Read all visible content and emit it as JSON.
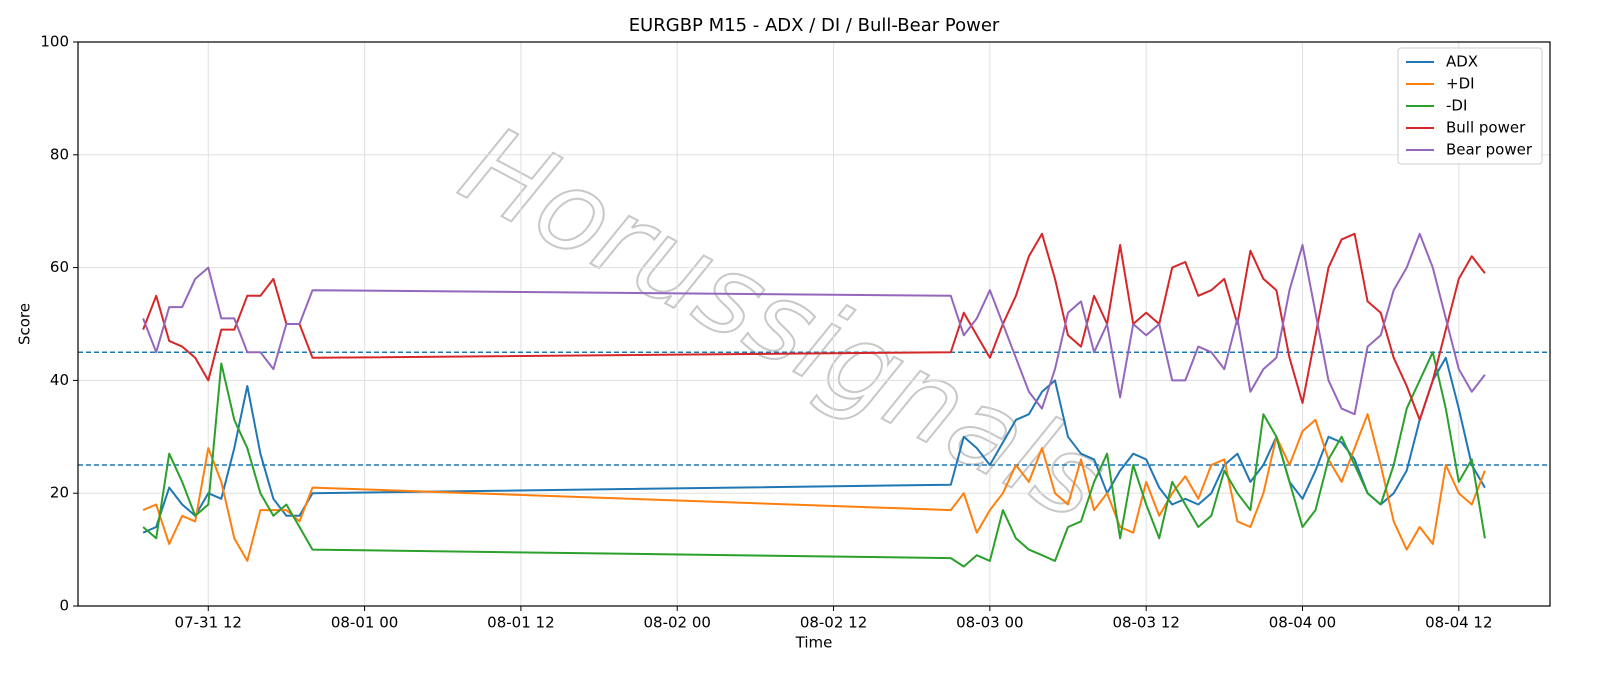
{
  "chart_data": {
    "type": "line",
    "title": "EURGBP M15 - ADX / DI / Bull-Bear Power",
    "x_label": "Time",
    "y_label": "Score",
    "watermark": "Horussignals",
    "x": [
      "07-31 07",
      "07-31 08",
      "07-31 09",
      "07-31 10",
      "07-31 11",
      "07-31 12",
      "07-31 13",
      "07-31 14",
      "07-31 15",
      "07-31 16",
      "07-31 17",
      "07-31 18",
      "07-31 19",
      "07-31 20",
      "08-02 21",
      "08-02 22",
      "08-02 23",
      "08-03 00",
      "08-03 01",
      "08-03 02",
      "08-03 03",
      "08-03 04",
      "08-03 05",
      "08-03 06",
      "08-03 07",
      "08-03 08",
      "08-03 09",
      "08-03 10",
      "08-03 11",
      "08-03 12",
      "08-03 13",
      "08-03 14",
      "08-03 15",
      "08-03 16",
      "08-03 17",
      "08-03 18",
      "08-03 19",
      "08-03 20",
      "08-03 21",
      "08-03 22",
      "08-03 23",
      "08-04 00",
      "08-04 01",
      "08-04 02",
      "08-04 03",
      "08-04 04",
      "08-04 05",
      "08-04 06",
      "08-04 07",
      "08-04 08",
      "08-04 09",
      "08-04 10",
      "08-04 11",
      "08-04 12",
      "08-04 13",
      "08-04 14"
    ],
    "series": [
      {
        "name": "ADX",
        "color": "#1f77b4",
        "values": [
          13,
          14,
          21,
          18,
          16,
          20,
          19,
          28,
          39,
          27,
          19,
          16,
          16,
          20,
          21.5,
          30,
          28,
          25,
          29,
          33,
          34,
          38,
          40,
          30,
          27,
          26,
          20,
          24,
          27,
          26,
          21,
          18,
          19,
          18,
          20,
          25,
          27,
          22,
          25,
          30,
          22,
          19,
          24,
          30,
          29,
          26,
          20,
          18,
          20,
          24,
          33,
          40,
          44,
          35,
          25,
          21
        ]
      },
      {
        "name": "+DI",
        "color": "#ff7f0e",
        "values": [
          17,
          18,
          11,
          16,
          15,
          28,
          22,
          12,
          8,
          17,
          17,
          17,
          15,
          21,
          17,
          20,
          13,
          17,
          20,
          25,
          22,
          28,
          20,
          18,
          26,
          17,
          20,
          14,
          13,
          22,
          16,
          20,
          23,
          19,
          25,
          26,
          15,
          14,
          20,
          30,
          25,
          31,
          33,
          26,
          22,
          28,
          34,
          25,
          15,
          10,
          14,
          11,
          25,
          20,
          18,
          24
        ]
      },
      {
        "name": "-DI",
        "color": "#2ca02c",
        "values": [
          14,
          12,
          27,
          22,
          16,
          18,
          43,
          33,
          28,
          20,
          16,
          18,
          14,
          10,
          8.5,
          7,
          9,
          8,
          17,
          12,
          10,
          9,
          8,
          14,
          15,
          22,
          27,
          12,
          25,
          18,
          12,
          22,
          18,
          14,
          16,
          24,
          20,
          17,
          34,
          30,
          22,
          14,
          17,
          26,
          30,
          25,
          20,
          18,
          25,
          35,
          40,
          45,
          35,
          22,
          26,
          12
        ]
      },
      {
        "name": "Bull power",
        "color": "#d62728",
        "values": [
          49,
          55,
          47,
          46,
          44,
          40,
          49,
          49,
          55,
          55,
          58,
          50,
          50,
          44,
          45,
          52,
          48,
          44,
          50,
          55,
          62,
          66,
          58,
          48,
          46,
          55,
          50,
          64,
          50,
          52,
          50,
          60,
          61,
          55,
          56,
          58,
          50,
          63,
          58,
          56,
          44,
          36,
          48,
          60,
          65,
          66,
          54,
          52,
          44,
          39,
          33,
          40,
          49,
          58,
          62,
          59
        ]
      },
      {
        "name": "Bear power",
        "color": "#9467bd",
        "values": [
          51,
          45,
          53,
          53,
          58,
          60,
          51,
          51,
          45,
          45,
          42,
          50,
          50,
          56,
          55,
          48,
          51,
          56,
          50,
          44,
          38,
          35,
          42,
          52,
          54,
          45,
          50,
          37,
          50,
          48,
          50,
          40,
          40,
          46,
          45,
          42,
          51,
          38,
          42,
          44,
          56,
          64,
          52,
          40,
          35,
          34,
          46,
          48,
          56,
          60,
          66,
          60,
          51,
          42,
          38,
          41
        ]
      }
    ],
    "hlines": [
      45,
      25
    ],
    "hline_color": "#1f77b4",
    "xlim": [
      "07-31 02",
      "08-04 19"
    ],
    "xticks": [
      "07-31 12",
      "08-01 00",
      "08-01 12",
      "08-02 00",
      "08-02 12",
      "08-03 00",
      "08-03 12",
      "08-04 00",
      "08-04 12"
    ],
    "ylim": [
      0,
      100
    ],
    "yticks": [
      0,
      20,
      40,
      60,
      80,
      100
    ],
    "grid": true,
    "legend": "upper right"
  }
}
